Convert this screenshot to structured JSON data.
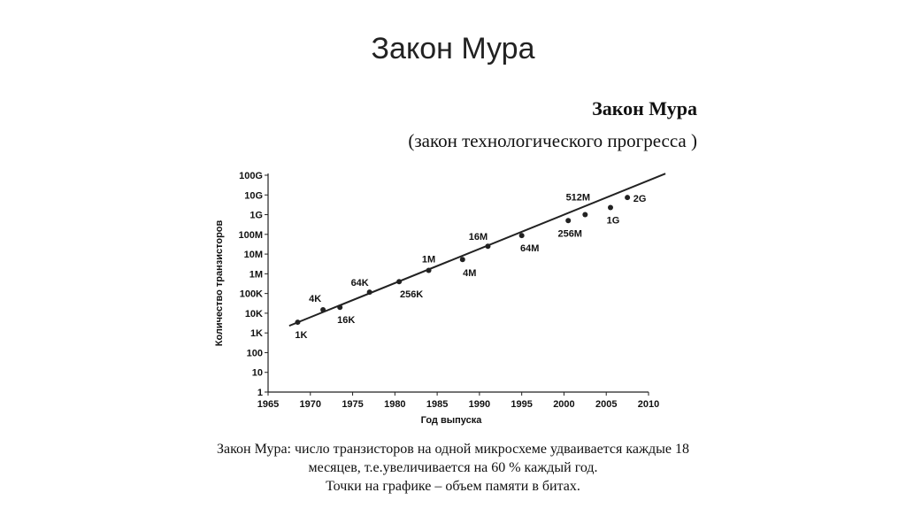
{
  "title": "Закон Мура",
  "chart_data": {
    "type": "scatter",
    "title": "Закон Мура",
    "subtitle": "(закон технологического прогресса )",
    "x_label": "Год выпуска",
    "y_label": "Количество транзисторов",
    "log_y": true,
    "grid": false,
    "color": "#222222",
    "xlim": [
      1965,
      2010
    ],
    "xticks": [
      1965,
      1970,
      1975,
      1980,
      1985,
      1990,
      1995,
      2000,
      2005,
      2010
    ],
    "ylim": [
      1,
      100000000000
    ],
    "yticks": [
      1,
      10,
      100,
      {
        "value": 1000,
        "label": "1K"
      },
      {
        "value": 10000,
        "label": "10K"
      },
      {
        "value": 100000,
        "label": "100K"
      },
      {
        "value": 1000000,
        "label": "1M"
      },
      {
        "value": 10000000,
        "label": "10M"
      },
      {
        "value": 100000000,
        "label": "100M"
      },
      {
        "value": 1000000000,
        "label": "1G"
      },
      {
        "value": 10000000000,
        "label": "10G"
      },
      {
        "value": 100000000000,
        "label": "100G"
      }
    ],
    "x": [
      1968.5,
      1971.5,
      1973.5,
      1977,
      1980.5,
      1984,
      1988,
      1991,
      1995,
      2000.5,
      2002.5,
      2005.5,
      2007.5
    ],
    "values": [
      3500,
      15000,
      20000,
      117000,
      400000,
      1500000,
      5300000,
      25000000,
      87000000,
      500000000,
      1000000000,
      2300000000,
      7400000000
    ],
    "point_labels": [
      "1K",
      "4K",
      "16K",
      "64K",
      "256K",
      "1M",
      "4M",
      "16M",
      "64M",
      "256M",
      "512M",
      "1G",
      "2G"
    ],
    "trend": {
      "x": [
        1967.5,
        2012
      ],
      "values": [
        2300,
        120000000000
      ]
    },
    "caption": [
      "Закон Мура: число транзисторов на одной микросхеме удваивается каждые 18",
      "месяцев, т.е.увеличивается на 60 % каждый год.",
      "Точки на графике –  объем памяти в битах."
    ]
  }
}
